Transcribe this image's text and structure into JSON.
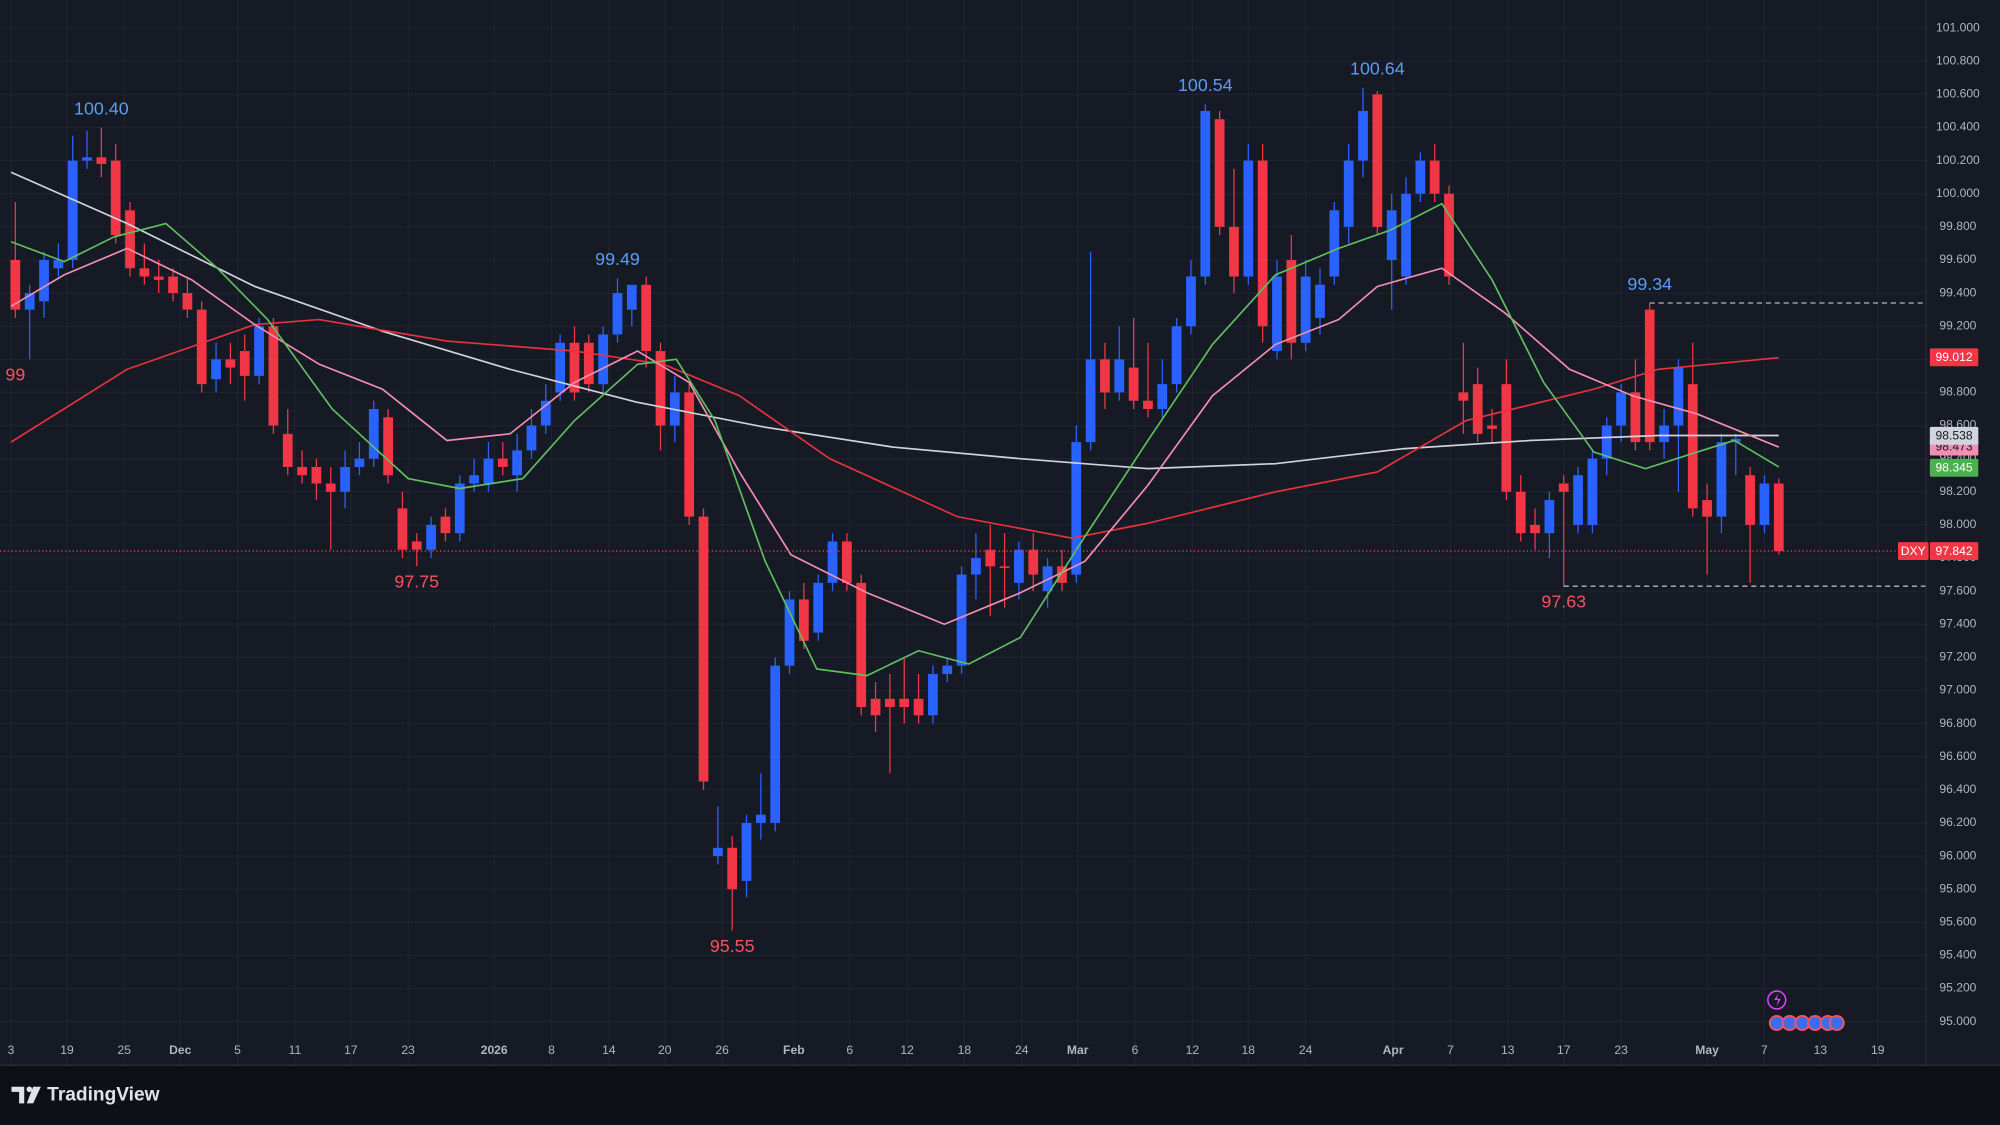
{
  "chart_data": {
    "type": "candlestick",
    "symbol": "DXY",
    "up_color": "#2962ff",
    "down_color": "#f23645",
    "grid": true,
    "open": [
      99.6,
      99.3,
      99.35,
      99.55,
      99.6,
      100.2,
      100.22,
      100.2,
      99.9,
      99.55,
      99.5,
      99.5,
      99.4,
      99.3,
      98.88,
      99.0,
      99.05,
      98.9,
      99.2,
      98.55,
      98.35,
      98.35,
      98.25,
      98.2,
      98.35,
      98.4,
      98.65,
      98.1,
      97.9,
      97.85,
      98.05,
      97.95,
      98.25,
      98.25,
      98.4,
      98.3,
      98.45,
      98.6,
      98.8,
      99.1,
      99.1,
      98.85,
      99.15,
      99.3,
      99.45,
      99.05,
      98.6,
      98.8,
      98.05,
      96.0,
      96.05,
      95.85,
      96.2,
      96.2,
      97.15,
      97.55,
      97.35,
      97.65,
      97.9,
      97.65,
      96.95,
      96.95,
      96.95,
      96.95,
      96.85,
      97.1,
      97.15,
      97.7,
      97.85,
      97.75,
      97.65,
      97.85,
      97.6,
      97.75,
      97.7,
      98.5,
      99.0,
      98.8,
      98.95,
      98.75,
      98.7,
      98.85,
      99.2,
      99.5,
      100.45,
      99.8,
      99.5,
      100.2,
      99.05,
      99.6,
      99.1,
      99.25,
      99.5,
      99.8,
      100.2,
      100.6,
      99.6,
      99.5,
      100.0,
      100.2,
      100.0,
      98.8,
      98.85,
      98.6,
      98.85,
      98.2,
      98.0,
      97.95,
      98.25,
      98.0,
      98.0,
      98.4,
      98.6,
      98.8,
      99.3,
      98.5,
      98.6,
      98.85,
      98.15,
      98.05,
      98.5,
      98.3,
      98.0,
      98.25
    ],
    "high": [
      99.95,
      99.45,
      99.65,
      99.7,
      100.35,
      100.38,
      100.4,
      100.3,
      99.95,
      99.7,
      99.6,
      99.55,
      99.5,
      99.35,
      99.1,
      99.1,
      99.15,
      99.25,
      99.25,
      98.7,
      98.45,
      98.4,
      98.35,
      98.45,
      98.5,
      98.75,
      98.7,
      98.2,
      97.95,
      98.05,
      98.1,
      98.3,
      98.4,
      98.5,
      98.5,
      98.55,
      98.7,
      98.85,
      99.15,
      99.2,
      99.15,
      99.2,
      99.49,
      99.45,
      99.5,
      99.1,
      98.9,
      98.85,
      98.1,
      96.3,
      96.12,
      96.25,
      96.5,
      97.2,
      97.6,
      97.65,
      97.7,
      97.95,
      97.95,
      97.7,
      97.05,
      97.1,
      97.2,
      97.1,
      97.15,
      97.2,
      97.75,
      97.95,
      98.0,
      97.95,
      97.9,
      97.95,
      97.8,
      97.85,
      98.6,
      99.65,
      99.1,
      99.2,
      99.25,
      99.1,
      99.0,
      99.25,
      99.6,
      100.54,
      100.5,
      100.15,
      100.3,
      100.3,
      99.6,
      99.75,
      99.6,
      99.55,
      99.95,
      100.3,
      100.64,
      100.62,
      100.0,
      100.1,
      100.25,
      100.3,
      100.05,
      99.1,
      98.95,
      98.7,
      99.0,
      98.3,
      98.1,
      98.2,
      98.3,
      98.35,
      98.45,
      98.65,
      98.85,
      99.0,
      99.34,
      98.7,
      99.0,
      99.1,
      98.25,
      98.55,
      98.55,
      98.35,
      98.3,
      98.28
    ],
    "low": [
      99.25,
      99.0,
      99.25,
      99.5,
      99.55,
      100.15,
      100.1,
      99.7,
      99.5,
      99.45,
      99.4,
      99.35,
      99.25,
      98.8,
      98.8,
      98.85,
      98.75,
      98.85,
      98.55,
      98.3,
      98.25,
      98.15,
      97.85,
      98.1,
      98.3,
      98.35,
      98.25,
      97.8,
      97.75,
      97.8,
      97.9,
      97.9,
      98.2,
      98.2,
      98.3,
      98.2,
      98.4,
      98.55,
      98.75,
      98.75,
      98.8,
      98.8,
      99.1,
      99.2,
      98.95,
      98.45,
      98.5,
      98.0,
      96.4,
      95.95,
      95.55,
      95.75,
      96.1,
      96.15,
      97.1,
      97.25,
      97.3,
      97.6,
      97.6,
      96.85,
      96.75,
      96.5,
      96.8,
      96.8,
      96.8,
      97.05,
      97.1,
      97.55,
      97.45,
      97.5,
      97.55,
      97.6,
      97.5,
      97.6,
      97.65,
      98.45,
      98.7,
      98.75,
      98.7,
      98.65,
      98.65,
      98.8,
      99.15,
      99.45,
      99.75,
      99.4,
      99.45,
      99.1,
      99.0,
      99.0,
      99.05,
      99.15,
      99.45,
      99.7,
      100.1,
      99.75,
      99.3,
      99.45,
      99.95,
      99.95,
      99.45,
      98.55,
      98.5,
      98.5,
      98.15,
      97.9,
      97.85,
      97.8,
      97.63,
      97.95,
      97.95,
      98.3,
      98.5,
      98.45,
      98.45,
      98.4,
      98.2,
      98.05,
      97.7,
      97.95,
      98.3,
      97.65,
      97.95,
      97.82
    ],
    "close": [
      99.3,
      99.4,
      99.6,
      99.6,
      100.2,
      100.22,
      100.18,
      99.75,
      99.55,
      99.5,
      99.48,
      99.4,
      99.3,
      98.85,
      99.0,
      98.95,
      98.9,
      99.2,
      98.6,
      98.35,
      98.3,
      98.25,
      98.2,
      98.35,
      98.4,
      98.7,
      98.3,
      97.85,
      97.85,
      98.0,
      97.95,
      98.25,
      98.3,
      98.4,
      98.35,
      98.45,
      98.6,
      98.75,
      99.1,
      98.8,
      98.85,
      99.15,
      99.4,
      99.45,
      99.05,
      98.6,
      98.8,
      98.05,
      96.45,
      96.05,
      95.8,
      96.2,
      96.25,
      97.15,
      97.55,
      97.3,
      97.65,
      97.9,
      97.65,
      96.9,
      96.85,
      96.9,
      96.9,
      96.85,
      97.1,
      97.15,
      97.7,
      97.8,
      97.75,
      97.74,
      97.85,
      97.7,
      97.75,
      97.65,
      98.5,
      99.0,
      98.8,
      99.0,
      98.75,
      98.7,
      98.85,
      99.2,
      99.5,
      100.5,
      99.8,
      99.5,
      100.2,
      99.2,
      99.5,
      99.1,
      99.5,
      99.45,
      99.9,
      100.2,
      100.5,
      99.8,
      99.9,
      100.0,
      100.2,
      100.0,
      99.5,
      98.75,
      98.55,
      98.58,
      98.2,
      97.95,
      97.95,
      98.15,
      98.2,
      98.3,
      98.4,
      98.6,
      98.8,
      98.5,
      98.5,
      98.6,
      98.95,
      98.1,
      98.05,
      98.5,
      98.52,
      98.0,
      98.25,
      97.842
    ],
    "lines": [
      {
        "color": "#d1d4dc",
        "x": [
          -0.3,
          7.8,
          16.7,
          25.6,
          34.5,
          43.4,
          52.3,
          61.2,
          70.1,
          79,
          87.9,
          96.8,
          105.7,
          114.6,
          123
        ],
        "values": [
          100.13,
          99.82,
          99.44,
          99.17,
          98.94,
          98.74,
          98.59,
          98.47,
          98.4,
          98.34,
          98.37,
          98.46,
          98.51,
          98.54,
          98.54
        ]
      },
      {
        "color": "#e8323c",
        "x": [
          -0.3,
          7.8,
          16.7,
          21.2,
          30.1,
          39,
          45.2,
          50.5,
          56.8,
          65.7,
          73.7,
          79,
          87.9,
          95,
          101.2,
          110.1,
          114.6,
          123
        ],
        "values": [
          98.5,
          98.94,
          99.21,
          99.24,
          99.11,
          99.05,
          98.97,
          98.78,
          98.4,
          98.05,
          97.92,
          98.01,
          98.2,
          98.32,
          98.63,
          98.82,
          98.94,
          99.01
        ]
      },
      {
        "color": "#f48fb1",
        "x": [
          -0.3,
          3.4,
          7.8,
          12.3,
          16.7,
          21.2,
          25.6,
          30.1,
          34.5,
          39,
          43.4,
          47,
          50.5,
          54.1,
          59.4,
          64.8,
          70.1,
          74.6,
          79,
          83.5,
          87.9,
          92.3,
          95,
          99.5,
          103.9,
          108.4,
          112.8,
          117.3,
          123
        ],
        "values": [
          99.32,
          99.51,
          99.67,
          99.48,
          99.21,
          98.97,
          98.82,
          98.51,
          98.55,
          98.86,
          99.05,
          98.86,
          98.32,
          97.82,
          97.59,
          97.4,
          97.59,
          97.78,
          98.24,
          98.78,
          99.09,
          99.24,
          99.44,
          99.55,
          99.28,
          98.94,
          98.78,
          98.67,
          98.47
        ]
      },
      {
        "color": "#5fbf5f",
        "x": [
          -0.3,
          3.4,
          6.9,
          10.5,
          14.1,
          17.6,
          22.1,
          27.4,
          31,
          35.4,
          39,
          43.4,
          46.1,
          48.8,
          52.3,
          55.9,
          59.4,
          63,
          66.5,
          70.1,
          74.6,
          79,
          83.5,
          87.9,
          92.3,
          95.9,
          99.5,
          103,
          106.6,
          110.1,
          113.7,
          117.3,
          119.9,
          123
        ],
        "values": [
          99.71,
          99.59,
          99.74,
          99.82,
          99.55,
          99.24,
          98.7,
          98.28,
          98.22,
          98.28,
          98.63,
          98.97,
          99.0,
          98.63,
          97.78,
          97.13,
          97.09,
          97.24,
          97.16,
          97.32,
          97.93,
          98.51,
          99.09,
          99.51,
          99.67,
          99.78,
          99.94,
          99.48,
          98.86,
          98.44,
          98.34,
          98.44,
          98.51,
          98.35
        ]
      }
    ],
    "annotations": [
      {
        "value": 99,
        "candle": 0,
        "side": "low",
        "color": "#f7525f"
      },
      {
        "value": 100.4,
        "label": "100.40",
        "candle": 6,
        "side": "high",
        "color": "#5b9cf6"
      },
      {
        "value": 97.75,
        "label": "97.75",
        "candle": 28,
        "side": "low",
        "color": "#f7525f"
      },
      {
        "value": 99.49,
        "label": "99.49",
        "candle": 42,
        "side": "high",
        "color": "#5b9cf6"
      },
      {
        "value": 95.55,
        "label": "95.55",
        "candle": 50,
        "side": "low",
        "color": "#f7525f"
      },
      {
        "value": 100.54,
        "label": "100.54",
        "candle": 83,
        "side": "high",
        "color": "#5b9cf6"
      },
      {
        "value": 100.64,
        "label": "100.64",
        "candle": 95,
        "side": "high",
        "color": "#5b9cf6"
      },
      {
        "value": 99.34,
        "label": "99.34",
        "candle": 114,
        "side": "high",
        "color": "#5b9cf6",
        "extend": true
      },
      {
        "value": 97.63,
        "label": "97.63",
        "candle": 108,
        "side": "low",
        "color": "#f7525f",
        "extend": true
      }
    ],
    "price_labels": [
      {
        "value": 99.012,
        "color": "#f23645",
        "text_color": "#ffffff"
      },
      {
        "value": 98.473,
        "color": "#f48fb1",
        "text_color": "#131722"
      },
      {
        "value": 98.538,
        "color": "#d1d4dc",
        "text_color": "#131722"
      },
      {
        "value": 98.345,
        "color": "#4caf50",
        "text_color": "#ffffff"
      },
      {
        "value": 97.842,
        "color": "#f23645",
        "text_color": "#ffffff",
        "current": true
      }
    ],
    "xlim": [
      -1.07,
      133.27
    ],
    "xticks": [
      {
        "value": -0.3,
        "label": "3"
      },
      {
        "value": 3.6,
        "label": "19"
      },
      {
        "value": 7.6,
        "label": "25"
      },
      {
        "value": 11.5,
        "label": "Dec"
      },
      {
        "value": 15.5,
        "label": "5"
      },
      {
        "value": 19.5,
        "label": "11"
      },
      {
        "value": 23.4,
        "label": "17"
      },
      {
        "value": 27.4,
        "label": "23"
      },
      {
        "value": 33.4,
        "label": "2026"
      },
      {
        "value": 37.4,
        "label": "8"
      },
      {
        "value": 41.4,
        "label": "14"
      },
      {
        "value": 45.3,
        "label": "20"
      },
      {
        "value": 49.3,
        "label": "26"
      },
      {
        "value": 54.3,
        "label": "Feb"
      },
      {
        "value": 58.2,
        "label": "6"
      },
      {
        "value": 62.2,
        "label": "12"
      },
      {
        "value": 66.2,
        "label": "18"
      },
      {
        "value": 70.2,
        "label": "24"
      },
      {
        "value": 74.1,
        "label": "Mar"
      },
      {
        "value": 78.1,
        "label": "6"
      },
      {
        "value": 82.1,
        "label": "12"
      },
      {
        "value": 86.0,
        "label": "18"
      },
      {
        "value": 90.0,
        "label": "24"
      },
      {
        "value": 96.1,
        "label": "Apr"
      },
      {
        "value": 100.1,
        "label": "7"
      },
      {
        "value": 104.1,
        "label": "13"
      },
      {
        "value": 108.0,
        "label": "17"
      },
      {
        "value": 112.0,
        "label": "23"
      },
      {
        "value": 118.0,
        "label": "May"
      },
      {
        "value": 122.0,
        "label": "7"
      },
      {
        "value": 125.9,
        "label": "13"
      },
      {
        "value": 129.9,
        "label": "19"
      }
    ],
    "ylim": [
      94.738,
      101.17
    ],
    "yticks": [
      {
        "value": 95,
        "label": "95.000"
      },
      {
        "value": 95.2,
        "label": "95.200"
      },
      {
        "value": 95.4,
        "label": "95.400"
      },
      {
        "value": 95.6,
        "label": "95.600"
      },
      {
        "value": 95.8,
        "label": "95.800"
      },
      {
        "value": 96,
        "label": "96.000"
      },
      {
        "value": 96.2,
        "label": "96.200"
      },
      {
        "value": 96.4,
        "label": "96.400"
      },
      {
        "value": 96.6,
        "label": "96.600"
      },
      {
        "value": 96.8,
        "label": "96.800"
      },
      {
        "value": 97,
        "label": "97.000"
      },
      {
        "value": 97.2,
        "label": "97.200"
      },
      {
        "value": 97.4,
        "label": "97.400"
      },
      {
        "value": 97.6,
        "label": "97.600"
      },
      {
        "value": 97.8,
        "label": "97.800"
      },
      {
        "value": 98,
        "label": "98.000"
      },
      {
        "value": 98.2,
        "label": "98.200"
      },
      {
        "value": 98.4,
        "label": "98.400"
      },
      {
        "value": 98.6,
        "label": "98.600"
      },
      {
        "value": 98.8,
        "label": "98.800"
      },
      {
        "value": 99,
        "label": "99.000"
      },
      {
        "value": 99.2,
        "label": "99.200"
      },
      {
        "value": 99.4,
        "label": "99.400"
      },
      {
        "value": 99.6,
        "label": "99.600"
      },
      {
        "value": 99.8,
        "label": "99.800"
      },
      {
        "value": 100,
        "label": "100.000"
      },
      {
        "value": 100.2,
        "label": "100.200"
      },
      {
        "value": 100.4,
        "label": "100.400"
      },
      {
        "value": 100.6,
        "label": "100.600"
      },
      {
        "value": 100.8,
        "label": "100.800"
      },
      {
        "value": 101,
        "label": "101.000"
      }
    ]
  },
  "brand": "TradingView"
}
